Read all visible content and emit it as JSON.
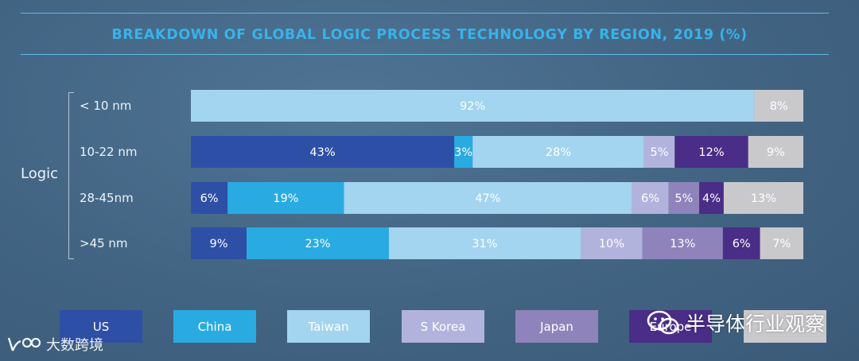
{
  "chart_data": {
    "type": "bar",
    "orientation": "horizontal",
    "stacked": true,
    "title": "BREAKDOWN OF GLOBAL LOGIC PROCESS TECHNOLOGY BY REGION, 2019 (%)",
    "group_label": "Logic",
    "categories": [
      "< 10 nm",
      "10-22 nm",
      "28-45nm",
      ">45 nm"
    ],
    "series": [
      {
        "name": "US",
        "color": "#2e4fa6",
        "values": [
          0,
          43,
          6,
          9
        ]
      },
      {
        "name": "China",
        "color": "#29abe2",
        "values": [
          0,
          3,
          19,
          23
        ]
      },
      {
        "name": "Taiwan",
        "color": "#a3d4f0",
        "values": [
          92,
          28,
          47,
          31
        ]
      },
      {
        "name": "S Korea",
        "color": "#b2b3dd",
        "values": [
          0,
          5,
          6,
          10
        ]
      },
      {
        "name": "Japan",
        "color": "#8e84bb",
        "values": [
          0,
          0,
          5,
          13
        ]
      },
      {
        "name": "Europe",
        "color": "#4a2d87",
        "values": [
          0,
          12,
          4,
          6
        ]
      },
      {
        "name": "",
        "color": "#c9c9cc",
        "values": [
          8,
          9,
          13,
          7
        ]
      }
    ],
    "value_labels": [
      [
        "",
        "",
        "92%",
        "",
        "",
        "",
        "8%"
      ],
      [
        "43%",
        "3%",
        "28%",
        "5%",
        "",
        "12%",
        "9%"
      ],
      [
        "6%",
        "19%",
        "47%",
        "6%",
        "5%",
        "4%",
        "13%"
      ],
      [
        "9%",
        "23%",
        "31%",
        "10%",
        "13%",
        "6%",
        "7%"
      ]
    ],
    "legend_position": "bottom",
    "grid": false
  },
  "watermark": {
    "right_text": "半导体行业观察",
    "left_text": "大数跨境"
  }
}
